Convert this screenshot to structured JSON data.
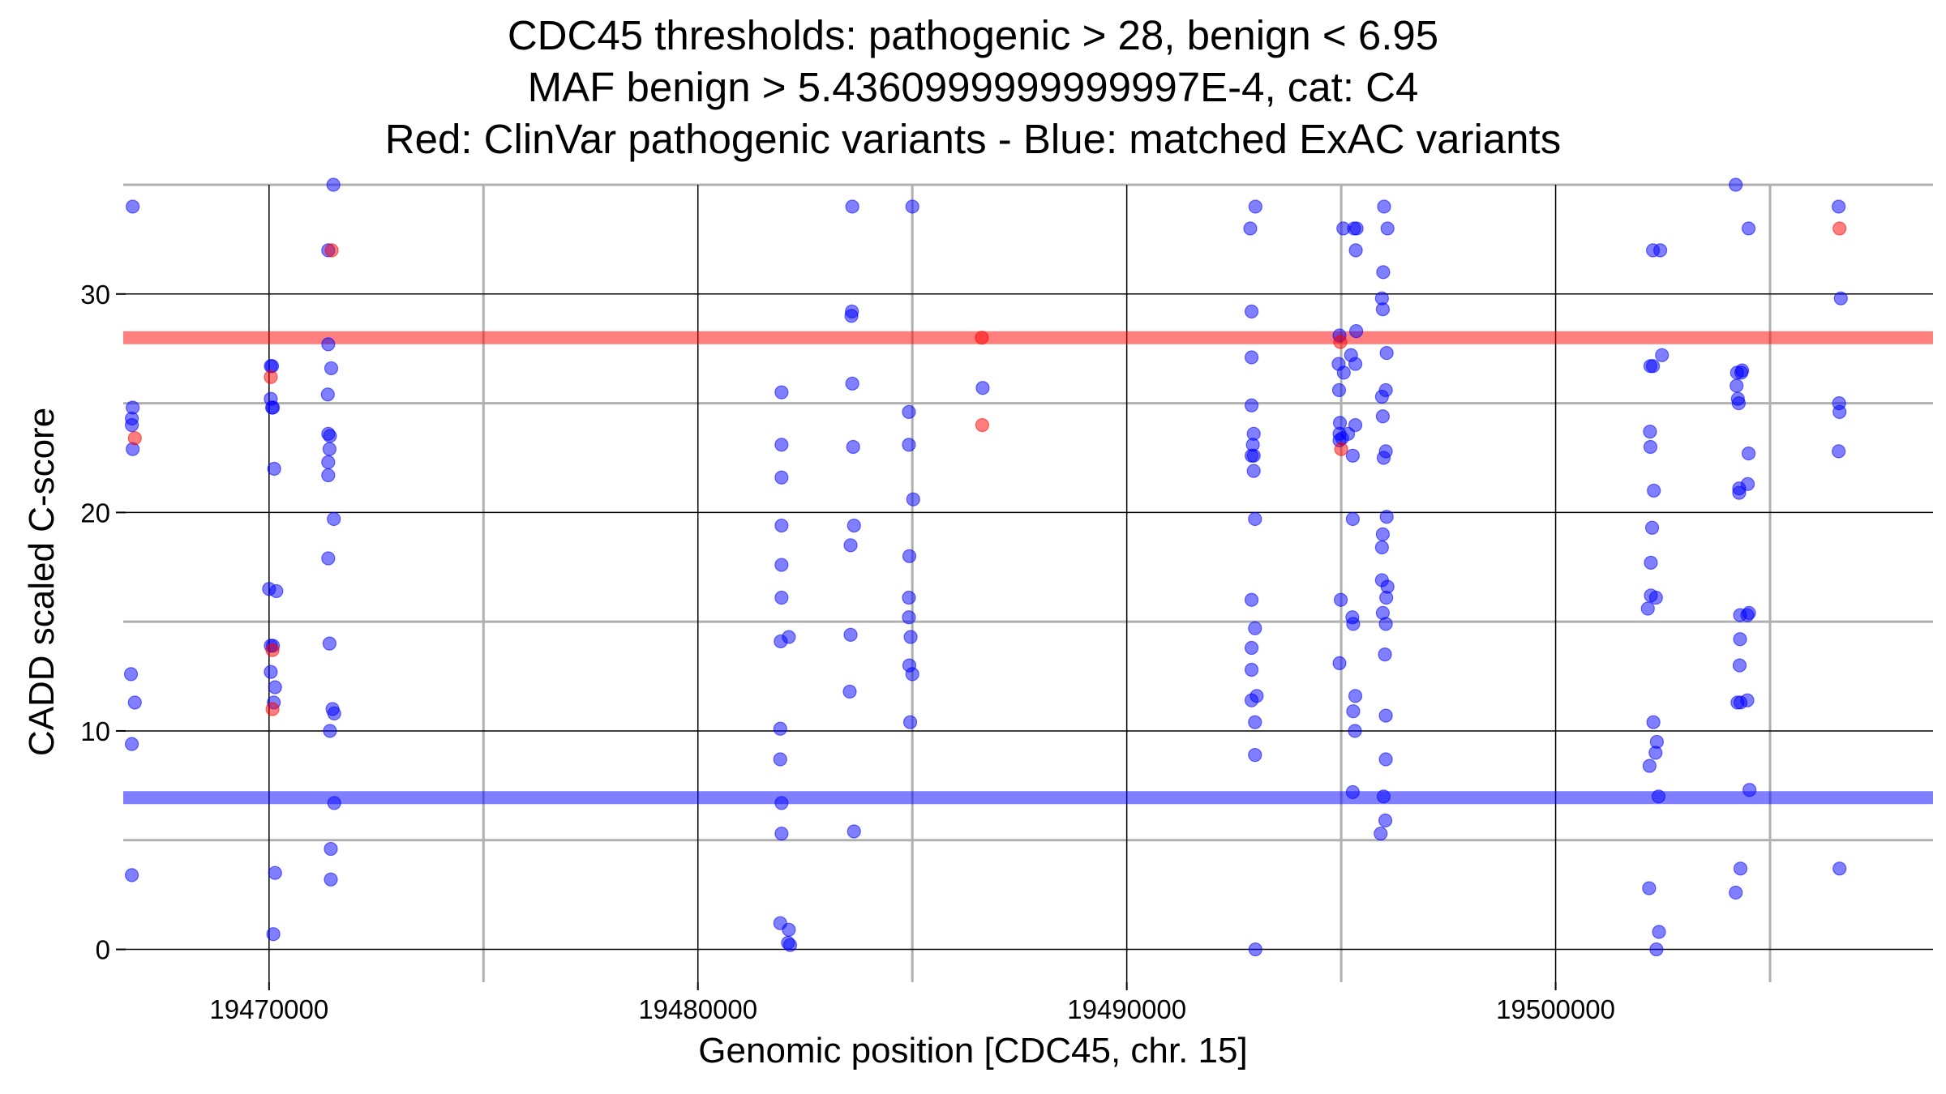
{
  "titles": {
    "line1": "CDC45 thresholds: pathogenic > 28, benign < 6.95",
    "line2": "MAF benign > 5.4360999999999997E-4, cat: C4",
    "line3": "Red: ClinVar pathogenic variants - Blue: matched ExAC variants"
  },
  "chart_data": {
    "type": "scatter",
    "xlabel": "Genomic position [CDC45, chr. 15]",
    "ylabel": "CADD scaled C-score",
    "xlim": [
      19466600,
      19508800
    ],
    "ylim": [
      -1.5,
      35
    ],
    "x_ticks": [
      19470000,
      19480000,
      19490000,
      19500000
    ],
    "y_ticks": [
      0,
      10,
      20,
      30
    ],
    "grid": true,
    "colors": {
      "pathogenic": "#ff0000",
      "benign": "#0000ff"
    },
    "thresholds": [
      {
        "name": "pathogenic",
        "value": 28,
        "color": "#ff0000"
      },
      {
        "name": "benign",
        "value": 6.95,
        "color": "#0000ff"
      }
    ],
    "series": [
      {
        "name": "ClinVar pathogenic",
        "color": "#ff0000",
        "points": [
          [
            19466870,
            23.4
          ],
          [
            19470040,
            26.2
          ],
          [
            19470080,
            13.7
          ],
          [
            19470080,
            11.0
          ],
          [
            19471460,
            32.0
          ],
          [
            19486620,
            28.0
          ],
          [
            19486630,
            24.0
          ],
          [
            19494980,
            27.8
          ],
          [
            19495000,
            22.9
          ],
          [
            19506620,
            33.0
          ]
        ]
      },
      {
        "name": "matched ExAC",
        "color": "#0000ff",
        "points": [
          [
            19466820,
            34.0
          ],
          [
            19466800,
            24.3
          ],
          [
            19466820,
            24.8
          ],
          [
            19466800,
            24.0
          ],
          [
            19466820,
            22.9
          ],
          [
            19466780,
            12.6
          ],
          [
            19466870,
            11.3
          ],
          [
            19466800,
            9.4
          ],
          [
            19466800,
            3.4
          ],
          [
            19470040,
            26.7
          ],
          [
            19470070,
            26.7
          ],
          [
            19470040,
            25.2
          ],
          [
            19470070,
            24.8
          ],
          [
            19470090,
            24.8
          ],
          [
            19470120,
            22.0
          ],
          [
            19470000,
            16.5
          ],
          [
            19470170,
            16.4
          ],
          [
            19470040,
            13.9
          ],
          [
            19470090,
            13.9
          ],
          [
            19470040,
            12.7
          ],
          [
            19470140,
            12.0
          ],
          [
            19470110,
            11.3
          ],
          [
            19470140,
            3.5
          ],
          [
            19470100,
            0.7
          ],
          [
            19471500,
            35.0
          ],
          [
            19471380,
            32.0
          ],
          [
            19471380,
            27.7
          ],
          [
            19471450,
            26.6
          ],
          [
            19471370,
            25.4
          ],
          [
            19471380,
            23.6
          ],
          [
            19471420,
            23.5
          ],
          [
            19471410,
            22.9
          ],
          [
            19471380,
            22.3
          ],
          [
            19471380,
            21.7
          ],
          [
            19471510,
            19.7
          ],
          [
            19471380,
            17.9
          ],
          [
            19471410,
            14.0
          ],
          [
            19471480,
            11.0
          ],
          [
            19471520,
            10.8
          ],
          [
            19471420,
            10.0
          ],
          [
            19471520,
            6.7
          ],
          [
            19471440,
            4.6
          ],
          [
            19471440,
            3.2
          ],
          [
            19481950,
            25.5
          ],
          [
            19481950,
            23.1
          ],
          [
            19481950,
            21.6
          ],
          [
            19481950,
            19.4
          ],
          [
            19481950,
            17.6
          ],
          [
            19481950,
            16.1
          ],
          [
            19481930,
            14.1
          ],
          [
            19482120,
            14.3
          ],
          [
            19481920,
            10.1
          ],
          [
            19481920,
            8.7
          ],
          [
            19481950,
            6.7
          ],
          [
            19481950,
            5.3
          ],
          [
            19481920,
            1.2
          ],
          [
            19482120,
            0.9
          ],
          [
            19482100,
            0.3
          ],
          [
            19482150,
            0.2
          ],
          [
            19483600,
            34.0
          ],
          [
            19483590,
            29.2
          ],
          [
            19483580,
            29.0
          ],
          [
            19483600,
            25.9
          ],
          [
            19483620,
            23.0
          ],
          [
            19483640,
            19.4
          ],
          [
            19483560,
            18.5
          ],
          [
            19483560,
            14.4
          ],
          [
            19483540,
            11.8
          ],
          [
            19483640,
            5.4
          ],
          [
            19485000,
            34.0
          ],
          [
            19484920,
            24.6
          ],
          [
            19484920,
            23.1
          ],
          [
            19485020,
            20.6
          ],
          [
            19484930,
            18.0
          ],
          [
            19484920,
            16.1
          ],
          [
            19484920,
            15.2
          ],
          [
            19484960,
            14.3
          ],
          [
            19484930,
            13.0
          ],
          [
            19485000,
            12.6
          ],
          [
            19484950,
            10.4
          ],
          [
            19486640,
            25.7
          ],
          [
            19493000,
            34.0
          ],
          [
            19492880,
            33.0
          ],
          [
            19492910,
            29.2
          ],
          [
            19492910,
            27.1
          ],
          [
            19492910,
            24.9
          ],
          [
            19492960,
            23.6
          ],
          [
            19492940,
            23.1
          ],
          [
            19492910,
            22.6
          ],
          [
            19492960,
            22.6
          ],
          [
            19492960,
            21.9
          ],
          [
            19492990,
            19.7
          ],
          [
            19492910,
            16.0
          ],
          [
            19492990,
            14.7
          ],
          [
            19492910,
            13.8
          ],
          [
            19492910,
            12.8
          ],
          [
            19492910,
            11.4
          ],
          [
            19493030,
            11.6
          ],
          [
            19492990,
            10.4
          ],
          [
            19492990,
            8.9
          ],
          [
            19493000,
            0.0
          ],
          [
            19495050,
            33.0
          ],
          [
            19495300,
            33.0
          ],
          [
            19495360,
            33.0
          ],
          [
            19495340,
            32.0
          ],
          [
            19494960,
            28.1
          ],
          [
            19495350,
            28.3
          ],
          [
            19495230,
            27.2
          ],
          [
            19494940,
            26.8
          ],
          [
            19495060,
            26.4
          ],
          [
            19495330,
            26.8
          ],
          [
            19494950,
            25.6
          ],
          [
            19494970,
            24.1
          ],
          [
            19495330,
            24.0
          ],
          [
            19494960,
            23.6
          ],
          [
            19495020,
            23.4
          ],
          [
            19495160,
            23.6
          ],
          [
            19494960,
            23.3
          ],
          [
            19495270,
            22.6
          ],
          [
            19495270,
            19.7
          ],
          [
            19494990,
            16.0
          ],
          [
            19495260,
            15.2
          ],
          [
            19495280,
            14.9
          ],
          [
            19494960,
            13.1
          ],
          [
            19495330,
            11.6
          ],
          [
            19495280,
            10.9
          ],
          [
            19495320,
            10.0
          ],
          [
            19495270,
            7.2
          ],
          [
            19496000,
            34.0
          ],
          [
            19496080,
            33.0
          ],
          [
            19495980,
            31.0
          ],
          [
            19495950,
            29.8
          ],
          [
            19495970,
            29.3
          ],
          [
            19496060,
            27.3
          ],
          [
            19496040,
            25.6
          ],
          [
            19495950,
            25.3
          ],
          [
            19495970,
            24.4
          ],
          [
            19496040,
            22.8
          ],
          [
            19495990,
            22.5
          ],
          [
            19496060,
            19.8
          ],
          [
            19495970,
            19.0
          ],
          [
            19495950,
            18.4
          ],
          [
            19495950,
            16.9
          ],
          [
            19496080,
            16.6
          ],
          [
            19496050,
            16.1
          ],
          [
            19495970,
            15.4
          ],
          [
            19496040,
            14.9
          ],
          [
            19496020,
            13.5
          ],
          [
            19496040,
            10.7
          ],
          [
            19496040,
            8.7
          ],
          [
            19495990,
            7.0
          ],
          [
            19496030,
            5.9
          ],
          [
            19495920,
            5.3
          ],
          [
            19502270,
            32.0
          ],
          [
            19502440,
            32.0
          ],
          [
            19502270,
            26.7
          ],
          [
            19502210,
            26.7
          ],
          [
            19502480,
            27.2
          ],
          [
            19502200,
            23.7
          ],
          [
            19502210,
            23.0
          ],
          [
            19502290,
            21.0
          ],
          [
            19502250,
            19.3
          ],
          [
            19502220,
            17.7
          ],
          [
            19502220,
            16.2
          ],
          [
            19502340,
            16.1
          ],
          [
            19502150,
            15.6
          ],
          [
            19502280,
            10.4
          ],
          [
            19502360,
            9.5
          ],
          [
            19502330,
            9.0
          ],
          [
            19502190,
            8.4
          ],
          [
            19502400,
            7.0
          ],
          [
            19502180,
            2.8
          ],
          [
            19502410,
            0.8
          ],
          [
            19502350,
            0.0
          ],
          [
            19504200,
            35.0
          ],
          [
            19504500,
            33.0
          ],
          [
            19504230,
            26.4
          ],
          [
            19504350,
            26.5
          ],
          [
            19504330,
            26.4
          ],
          [
            19504220,
            25.8
          ],
          [
            19504270,
            25.0
          ],
          [
            19504250,
            25.2
          ],
          [
            19504500,
            22.7
          ],
          [
            19504280,
            21.1
          ],
          [
            19504280,
            20.9
          ],
          [
            19504480,
            21.3
          ],
          [
            19504300,
            15.3
          ],
          [
            19504470,
            15.3
          ],
          [
            19504510,
            15.4
          ],
          [
            19504300,
            14.2
          ],
          [
            19504290,
            13.0
          ],
          [
            19504240,
            11.3
          ],
          [
            19504310,
            11.3
          ],
          [
            19504470,
            11.4
          ],
          [
            19504520,
            7.3
          ],
          [
            19504310,
            3.7
          ],
          [
            19504200,
            2.6
          ],
          [
            19506600,
            34.0
          ],
          [
            19506650,
            29.8
          ],
          [
            19506610,
            25.0
          ],
          [
            19506620,
            24.6
          ],
          [
            19506600,
            22.8
          ],
          [
            19506620,
            3.7
          ]
        ]
      }
    ]
  }
}
